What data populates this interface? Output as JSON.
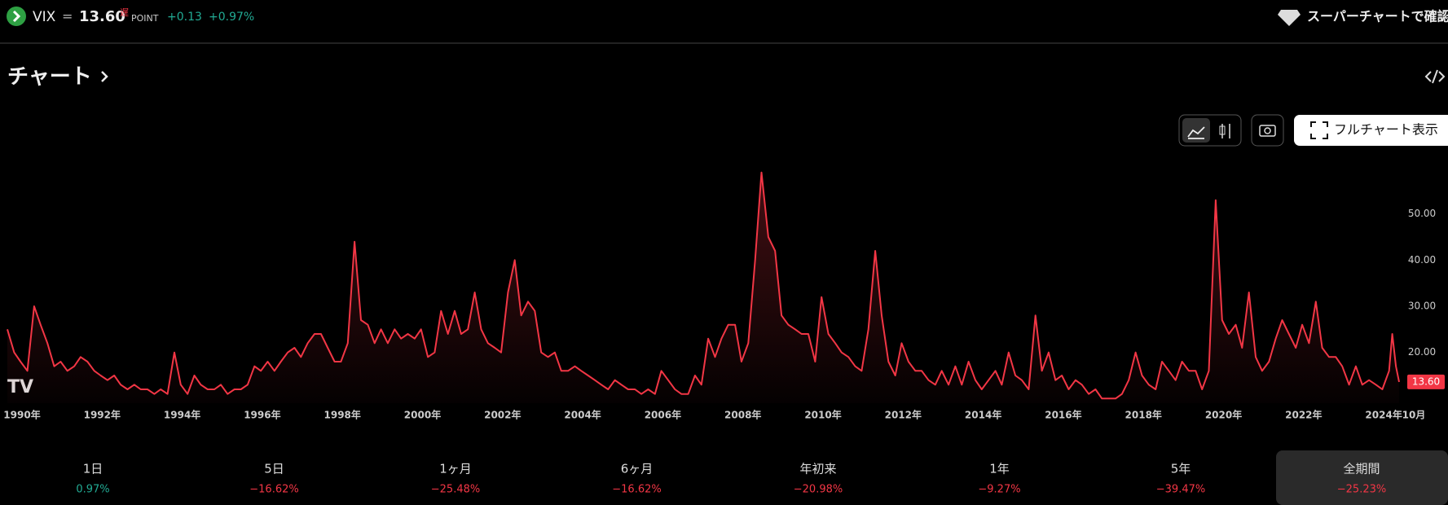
{
  "header": {
    "symbol": "VIX",
    "separator": "=",
    "price": "13.60",
    "delayed": "遅",
    "unit": "POINT",
    "change": "+0.13",
    "change_pct": "+0.97%",
    "supercharts": "スーパーチャートで確認"
  },
  "section_title": "チャート",
  "full_chart": "フルチャート表示",
  "chart_data": {
    "type": "line",
    "color": "#f23645",
    "price_label": "13.60",
    "x": [
      1990,
      1990.17,
      1990.33,
      1990.5,
      1990.67,
      1990.83,
      1991,
      1991.17,
      1991.33,
      1991.5,
      1991.67,
      1991.83,
      1992,
      1992.17,
      1992.33,
      1992.5,
      1992.67,
      1992.83,
      1993,
      1993.17,
      1993.33,
      1993.5,
      1993.67,
      1993.83,
      1994,
      1994.17,
      1994.33,
      1994.5,
      1994.67,
      1994.83,
      1995,
      1995.17,
      1995.33,
      1995.5,
      1995.67,
      1995.83,
      1996,
      1996.17,
      1996.33,
      1996.5,
      1996.67,
      1996.83,
      1997,
      1997.17,
      1997.33,
      1997.5,
      1997.67,
      1997.83,
      1998,
      1998.17,
      1998.33,
      1998.5,
      1998.67,
      1998.83,
      1999,
      1999.17,
      1999.33,
      1999.5,
      1999.67,
      1999.83,
      2000,
      2000.17,
      2000.33,
      2000.5,
      2000.67,
      2000.83,
      2001,
      2001.17,
      2001.33,
      2001.5,
      2001.67,
      2001.83,
      2002,
      2002.17,
      2002.33,
      2002.5,
      2002.67,
      2002.83,
      2003,
      2003.17,
      2003.33,
      2003.5,
      2003.67,
      2003.83,
      2004,
      2004.17,
      2004.33,
      2004.5,
      2004.67,
      2004.83,
      2005,
      2005.17,
      2005.33,
      2005.5,
      2005.67,
      2005.83,
      2006,
      2006.17,
      2006.33,
      2006.5,
      2006.67,
      2006.83,
      2007,
      2007.17,
      2007.33,
      2007.5,
      2007.67,
      2007.83,
      2008,
      2008.17,
      2008.33,
      2008.5,
      2008.67,
      2008.83,
      2009,
      2009.17,
      2009.33,
      2009.5,
      2009.67,
      2009.83,
      2010,
      2010.17,
      2010.33,
      2010.5,
      2010.67,
      2010.83,
      2011,
      2011.17,
      2011.33,
      2011.5,
      2011.67,
      2011.83,
      2012,
      2012.17,
      2012.33,
      2012.5,
      2012.67,
      2012.83,
      2013,
      2013.17,
      2013.33,
      2013.5,
      2013.67,
      2013.83,
      2014,
      2014.17,
      2014.33,
      2014.5,
      2014.67,
      2014.83,
      2015,
      2015.17,
      2015.33,
      2015.5,
      2015.67,
      2015.83,
      2016,
      2016.17,
      2016.33,
      2016.5,
      2016.67,
      2016.83,
      2017,
      2017.17,
      2017.33,
      2017.5,
      2017.67,
      2017.83,
      2018,
      2018.17,
      2018.33,
      2018.5,
      2018.67,
      2018.83,
      2019,
      2019.17,
      2019.33,
      2019.5,
      2019.67,
      2019.83,
      2020,
      2020.17,
      2020.33,
      2020.5,
      2020.67,
      2020.83,
      2021,
      2021.17,
      2021.33,
      2021.5,
      2021.67,
      2021.83,
      2022,
      2022.17,
      2022.33,
      2022.5,
      2022.67,
      2022.83,
      2023,
      2023.17,
      2023.33,
      2023.5,
      2023.67,
      2023.83,
      2024,
      2024.17,
      2024.33,
      2024.5,
      2024.58,
      2024.67,
      2024.75
    ],
    "values": [
      25,
      20,
      18,
      16,
      30,
      26,
      22,
      17,
      18,
      16,
      17,
      19,
      18,
      16,
      15,
      14,
      15,
      13,
      12,
      13,
      12,
      12,
      11,
      12,
      11,
      20,
      13,
      11,
      15,
      13,
      12,
      12,
      13,
      11,
      12,
      12,
      13,
      17,
      16,
      18,
      16,
      18,
      20,
      21,
      19,
      22,
      24,
      24,
      21,
      18,
      18,
      22,
      44,
      27,
      26,
      22,
      25,
      22,
      25,
      23,
      24,
      23,
      25,
      19,
      20,
      29,
      24,
      29,
      24,
      25,
      33,
      25,
      22,
      21,
      20,
      33,
      40,
      28,
      31,
      29,
      20,
      19,
      20,
      16,
      16,
      17,
      16,
      15,
      14,
      13,
      12,
      14,
      13,
      12,
      12,
      11,
      12,
      11,
      16,
      14,
      12,
      11,
      11,
      15,
      13,
      23,
      19,
      23,
      26,
      26,
      18,
      22,
      40,
      59,
      45,
      42,
      28,
      26,
      25,
      24,
      24,
      18,
      32,
      24,
      22,
      20,
      19,
      17,
      16,
      25,
      42,
      28,
      18,
      15,
      22,
      18,
      16,
      16,
      14,
      13,
      16,
      13,
      17,
      13,
      18,
      14,
      12,
      14,
      16,
      13,
      20,
      15,
      14,
      12,
      28,
      16,
      20,
      14,
      15,
      12,
      14,
      13,
      11,
      12,
      10,
      10,
      10,
      11,
      14,
      20,
      15,
      13,
      12,
      18,
      16,
      14,
      18,
      16,
      16,
      12,
      16,
      53,
      27,
      24,
      26,
      21,
      33,
      19,
      16,
      18,
      23,
      27,
      24,
      21,
      26,
      22,
      31,
      21,
      19,
      19,
      17,
      13,
      17,
      13,
      14,
      13,
      12,
      16,
      24,
      17,
      13.6
    ],
    "xlim": [
      1990,
      2024.75
    ],
    "ylim": [
      9,
      63
    ],
    "yticks": [
      {
        "value": 20,
        "label": "20.00"
      },
      {
        "value": 30,
        "label": "30.00"
      },
      {
        "value": 40,
        "label": "40.00"
      },
      {
        "value": 50,
        "label": "50.00"
      }
    ],
    "xticks": [
      {
        "value": 1990,
        "label": "1990年"
      },
      {
        "value": 1992,
        "label": "1992年"
      },
      {
        "value": 1994,
        "label": "1994年"
      },
      {
        "value": 1996,
        "label": "1996年"
      },
      {
        "value": 1998,
        "label": "1998年"
      },
      {
        "value": 2000,
        "label": "2000年"
      },
      {
        "value": 2002,
        "label": "2002年"
      },
      {
        "value": 2004,
        "label": "2004年"
      },
      {
        "value": 2006,
        "label": "2006年"
      },
      {
        "value": 2008,
        "label": "2008年"
      },
      {
        "value": 2010,
        "label": "2010年"
      },
      {
        "value": 2012,
        "label": "2012年"
      },
      {
        "value": 2014,
        "label": "2014年"
      },
      {
        "value": 2016,
        "label": "2016年"
      },
      {
        "value": 2018,
        "label": "2018年"
      },
      {
        "value": 2020,
        "label": "2020年"
      },
      {
        "value": 2022,
        "label": "2022年"
      },
      {
        "value": 2024,
        "label": "2024年"
      },
      {
        "value": 2024.75,
        "label": "10月"
      }
    ]
  },
  "periods": [
    {
      "label": "1日",
      "change": "0.97%",
      "color": "#22ab94"
    },
    {
      "label": "5日",
      "change": "−16.62%",
      "color": "#f23645"
    },
    {
      "label": "1ヶ月",
      "change": "−25.48%",
      "color": "#f23645"
    },
    {
      "label": "6ヶ月",
      "change": "−16.62%",
      "color": "#f23645"
    },
    {
      "label": "年初来",
      "change": "−20.98%",
      "color": "#f23645"
    },
    {
      "label": "1年",
      "change": "−9.27%",
      "color": "#f23645"
    },
    {
      "label": "5年",
      "change": "−39.47%",
      "color": "#f23645"
    },
    {
      "label": "全期間",
      "change": "−25.23%",
      "color": "#f23645",
      "selected": true
    }
  ]
}
